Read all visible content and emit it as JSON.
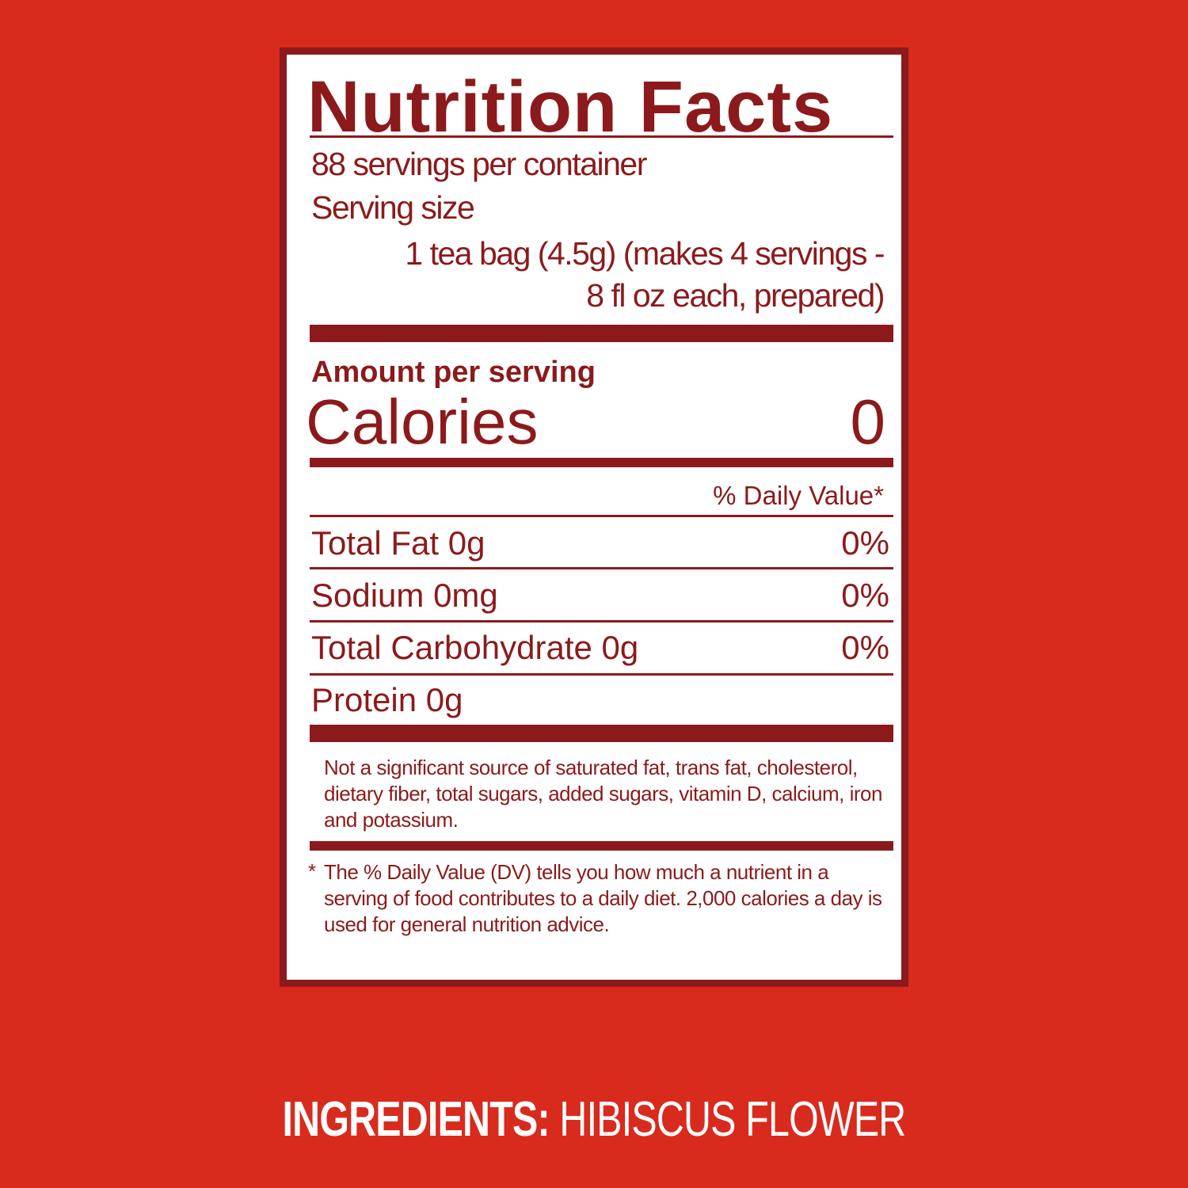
{
  "label": {
    "title": "Nutrition Facts",
    "servings_per_container": "88 servings per container",
    "serving_size_label": "Serving size",
    "serving_size_line1": "1 tea bag (4.5g) (makes 4 servings -",
    "serving_size_line2": "8 fl oz each, prepared)",
    "amount_per_serving": "Amount per serving",
    "calories_label": "Calories",
    "calories_value": "0",
    "daily_value_header": "% Daily Value*",
    "nutrients": [
      {
        "name": "Total Fat 0g",
        "dv": "0%"
      },
      {
        "name": "Sodium 0mg",
        "dv": "0%"
      },
      {
        "name": "Total Carbohydrate 0g",
        "dv": "0%"
      },
      {
        "name": "Protein 0g",
        "dv": ""
      }
    ],
    "not_significant_note": "Not a significant source of saturated fat, trans fat, cholesterol, dietary fiber, total sugars, added sugars, vitamin D, calcium, iron and potassium.",
    "dv_footnote_star": "*",
    "dv_footnote": "The % Daily Value (DV) tells you how much a nutrient in a serving of food contributes to a daily diet. 2,000 calories a day is used for general nutrition advice."
  },
  "ingredients": {
    "label": "INGREDIENTS:",
    "value": "HIBISCUS FLOWER"
  },
  "colors": {
    "background": "#d92a1e",
    "label_text": "#8c1a1c",
    "panel": "#ffffff"
  }
}
